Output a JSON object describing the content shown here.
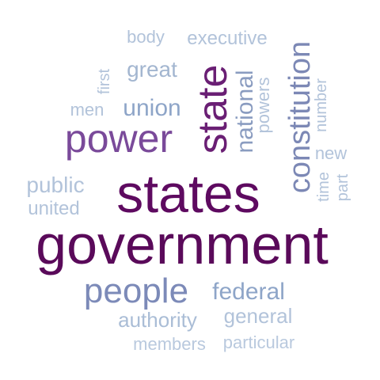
{
  "word_cloud": {
    "words": [
      {
        "text": "government",
        "color": "#5a0a5a"
      },
      {
        "text": "states",
        "color": "#5e0a60"
      },
      {
        "text": "state",
        "color": "#6a1f74"
      },
      {
        "text": "power",
        "color": "#7a4a9a"
      },
      {
        "text": "people",
        "color": "#7c8ab8"
      },
      {
        "text": "constitution",
        "color": "#7c88b5"
      },
      {
        "text": "national",
        "color": "#8a9cc0"
      },
      {
        "text": "union",
        "color": "#8ea5c8"
      },
      {
        "text": "federal",
        "color": "#8ea5c8"
      },
      {
        "text": "great",
        "color": "#a3b6d0"
      },
      {
        "text": "executive",
        "color": "#b2c3da"
      },
      {
        "text": "body",
        "color": "#b2c3da"
      },
      {
        "text": "powers",
        "color": "#b2c3da"
      },
      {
        "text": "first",
        "color": "#b2c3da"
      },
      {
        "text": "men",
        "color": "#b2c3da"
      },
      {
        "text": "number",
        "color": "#b2c3da"
      },
      {
        "text": "new",
        "color": "#b2c3da"
      },
      {
        "text": "time",
        "color": "#b2c3da"
      },
      {
        "text": "part",
        "color": "#b2c3da"
      },
      {
        "text": "public",
        "color": "#b2c3da"
      },
      {
        "text": "united",
        "color": "#b2c3da"
      },
      {
        "text": "authority",
        "color": "#aabdd6"
      },
      {
        "text": "general",
        "color": "#b2c3da"
      },
      {
        "text": "members",
        "color": "#b9c9de"
      },
      {
        "text": "particular",
        "color": "#b9c9de"
      }
    ]
  }
}
